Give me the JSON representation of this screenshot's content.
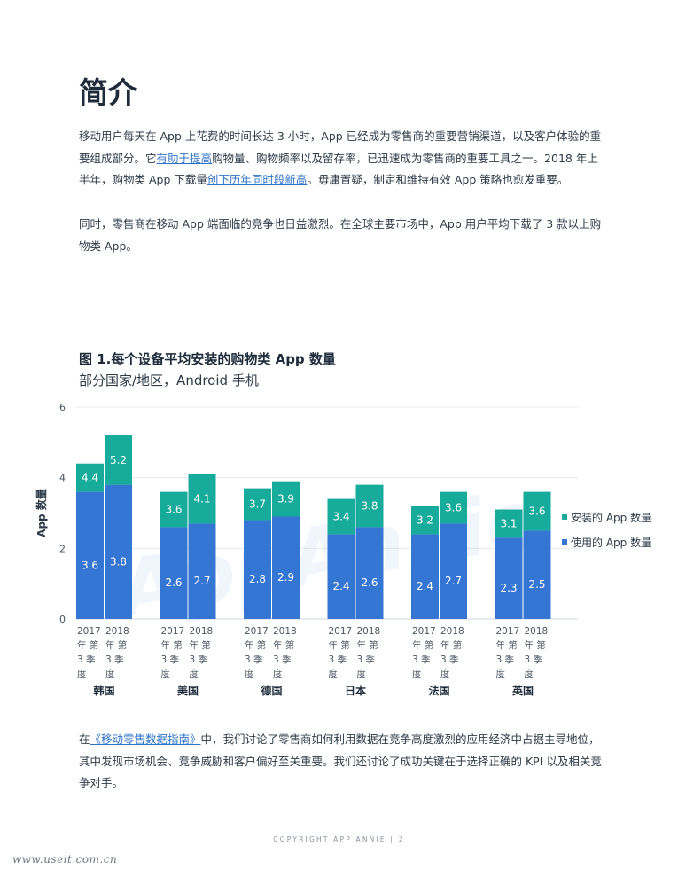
{
  "heading": "简介",
  "intro": {
    "p1": {
      "t1": "移动用户每天在 App 上花费的时间长达 3 小时，App 已经成为零售商的重要营销渠道，以及客户体验的重要组成部分。它",
      "link1": "有助于提高",
      "t2": "购物量、购物频率以及留存率，已迅速成为零售商的重要工具之一。2018 年上半年，购物类 App 下载量",
      "link2": "创下历年同时段新高",
      "t3": "。毋庸置疑，制定和维持有效 App 策略也愈发重要。"
    },
    "p2": "同时，零售商在移动 App 端面临的竞争也日益激烈。在全球主要市场中，App 用户平均下载了 3 款以上购物类 App。"
  },
  "figure": {
    "title": "图 1.每个设备平均安装的购物类 App 数量",
    "subtitle": "部分国家/地区，Android 手机"
  },
  "chart_data": {
    "type": "bar",
    "stacked": true,
    "ylabel": "App 数量",
    "ylim": [
      0,
      6
    ],
    "yticks": [
      "0",
      "2",
      "4",
      "6"
    ],
    "grid": true,
    "legend_position": "right",
    "bar_label_lines": [
      "2017 年第3季度",
      "2018 年第3季度"
    ],
    "groups": [
      {
        "country": "韩国",
        "used": [
          3.6,
          3.8
        ],
        "installed_total": [
          4.4,
          5.2
        ]
      },
      {
        "country": "美国",
        "used": [
          2.6,
          2.7
        ],
        "installed_total": [
          3.6,
          4.1
        ]
      },
      {
        "country": "德国",
        "used": [
          2.8,
          2.9
        ],
        "installed_total": [
          3.7,
          3.9
        ]
      },
      {
        "country": "日本",
        "used": [
          2.4,
          2.6
        ],
        "installed_total": [
          3.4,
          3.8
        ]
      },
      {
        "country": "法国",
        "used": [
          2.4,
          2.7
        ],
        "installed_total": [
          3.2,
          3.6
        ]
      },
      {
        "country": "英国",
        "used": [
          2.3,
          2.5
        ],
        "installed_total": [
          3.1,
          3.6
        ]
      }
    ],
    "series": [
      {
        "name": "安装的 App 数量",
        "color": "#17ab9c"
      },
      {
        "name": "使用的 App 数量",
        "color": "#3576d4"
      }
    ],
    "watermark": "AppAnnie"
  },
  "outro": {
    "t1": "在",
    "link": "《移动零售数据指南》",
    "t2": "中，我们讨论了零售商如何利用数据在竞争高度激烈的应用经济中占据主导地位，其中发现市场机会、竞争威胁和客户偏好至关重要。我们还讨论了成功关键在于选择正确的 KPI 以及相关竞争对手。"
  },
  "footer": "COPYRIGHT APP ANNIE  |  2",
  "site": "www.useit.com.cn"
}
